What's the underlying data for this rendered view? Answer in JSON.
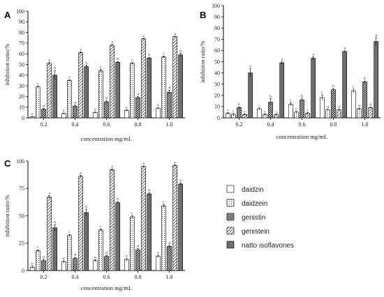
{
  "colors": {
    "axis": "#000000",
    "bar_stroke": "#000000",
    "solid_fill": "#6d6d6d",
    "white": "#ffffff"
  },
  "legend": {
    "items": [
      {
        "name": "daidzin",
        "pattern": "white"
      },
      {
        "name": "daidzein",
        "pattern": "dots"
      },
      {
        "name": "genistin",
        "pattern": "checker"
      },
      {
        "name": "genistein",
        "pattern": "diagonal"
      },
      {
        "name": "natto isoflavones",
        "pattern": "solid"
      }
    ]
  },
  "chart_data": [
    {
      "panel": "A",
      "type": "bar",
      "categories": [
        "0.2",
        "0.4",
        "0.6",
        "0.8",
        "1.0"
      ],
      "xlabel": "concentration mg/mL",
      "ylabel": "inhibition ratio/%",
      "ylim": [
        0,
        100
      ],
      "yticks": [
        0,
        10,
        20,
        30,
        40,
        50,
        60,
        70,
        80,
        90,
        100
      ],
      "series": [
        {
          "name": "daidzin",
          "values": [
            1,
            4,
            5,
            7,
            9
          ],
          "errors": [
            0.3,
            0.5,
            0.5,
            0.6,
            0.8
          ],
          "letters": [
            "e",
            "e",
            "e",
            "e",
            "e"
          ]
        },
        {
          "name": "daidzein",
          "values": [
            29,
            35,
            44,
            51,
            57
          ],
          "errors": [
            0.8,
            0.8,
            1.5,
            0.8,
            0.8
          ],
          "letters": [
            "c",
            "c",
            "c",
            "c",
            "c"
          ]
        },
        {
          "name": "genistin",
          "values": [
            8,
            11,
            15,
            19,
            24
          ],
          "errors": [
            0.8,
            0.8,
            1,
            1,
            2
          ],
          "letters": [
            "d",
            "d",
            "d",
            "d",
            "d"
          ]
        },
        {
          "name": "genistein",
          "values": [
            51,
            61,
            68,
            74,
            76
          ],
          "errors": [
            1,
            0.8,
            0.8,
            0.5,
            0.5
          ],
          "letters": [
            "a",
            "a",
            "a",
            "a",
            "a"
          ]
        },
        {
          "name": "natto isoflavones",
          "values": [
            40,
            48,
            52,
            56,
            59
          ],
          "errors": [
            4,
            1.5,
            0.8,
            0.8,
            1.5
          ],
          "letters": [
            "b",
            "b",
            "b",
            "b",
            "b"
          ]
        }
      ]
    },
    {
      "panel": "B",
      "type": "bar",
      "categories": [
        "0.2",
        "0.4",
        "0.6",
        "0.8",
        "1.0"
      ],
      "xlabel": "concentration mg/mL",
      "ylabel": "inhibition ratio/%",
      "ylim": [
        0,
        100
      ],
      "yticks": [
        0,
        10,
        20,
        30,
        40,
        50,
        60,
        70,
        80,
        90,
        100
      ],
      "series": [
        {
          "name": "daidzin",
          "values": [
            4,
            8,
            12,
            18,
            24
          ],
          "errors": [
            0.8,
            0.8,
            1.5,
            2.5,
            1.5
          ],
          "letters": [
            "c",
            "c",
            "c",
            "c",
            "c"
          ]
        },
        {
          "name": "daidzein",
          "values": [
            3,
            3,
            5,
            7,
            8
          ],
          "errors": [
            0.8,
            0.5,
            0.8,
            0.5,
            0.5
          ],
          "letters": [
            "c",
            "c",
            "c",
            "d",
            "d"
          ]
        },
        {
          "name": "genistin",
          "values": [
            9,
            14,
            16,
            25,
            32
          ],
          "errors": [
            0.8,
            3,
            1.5,
            1,
            0.8
          ],
          "letters": [
            "b",
            "b",
            "b",
            "b",
            "b"
          ]
        },
        {
          "name": "genistein",
          "values": [
            3,
            3,
            4,
            7,
            9
          ],
          "errors": [
            0.5,
            0.5,
            0.8,
            0.5,
            0.5
          ],
          "letters": [
            "c",
            "c",
            "c",
            "d",
            "d"
          ]
        },
        {
          "name": "natto isoflavones",
          "values": [
            40,
            49,
            53,
            59,
            68
          ],
          "errors": [
            4,
            1,
            1.5,
            0.8,
            3.5
          ],
          "letters": [
            "a",
            "a",
            "a",
            "a",
            "a"
          ]
        }
      ]
    },
    {
      "panel": "C",
      "type": "bar",
      "categories": [
        "0.2",
        "0.4",
        "0.6",
        "0.8",
        "1.0"
      ],
      "xlabel": "concentration mg/mL",
      "ylabel": "inhibition ratio/%",
      "ylim": [
        0,
        100
      ],
      "yticks": [
        0,
        25,
        50,
        75,
        100
      ],
      "series": [
        {
          "name": "daidzin",
          "values": [
            3,
            8,
            9,
            10,
            13
          ],
          "errors": [
            1,
            1,
            1,
            1,
            1
          ],
          "letters": [
            "e",
            "e",
            "e",
            "e",
            "e"
          ]
        },
        {
          "name": "daidzein",
          "values": [
            18,
            32,
            37,
            49,
            59
          ],
          "errors": [
            1,
            1,
            1,
            1,
            1.5
          ],
          "letters": [
            "c",
            "c",
            "c",
            "c",
            "c"
          ]
        },
        {
          "name": "genistin",
          "values": [
            9,
            11,
            13,
            19,
            22
          ],
          "errors": [
            1,
            1,
            1,
            1,
            1
          ],
          "letters": [
            "d",
            "d",
            "d",
            "d",
            "d"
          ]
        },
        {
          "name": "genistein",
          "values": [
            67,
            86,
            92,
            95,
            96
          ],
          "errors": [
            1.5,
            1,
            1,
            0.5,
            0.5
          ],
          "letters": [
            "a",
            "a",
            "a",
            "a",
            "a"
          ]
        },
        {
          "name": "natto isoflavones",
          "values": [
            39,
            53,
            62,
            70,
            79
          ],
          "errors": [
            3,
            3,
            1,
            1,
            1
          ],
          "letters": [
            "b",
            "b",
            "b",
            "b",
            "b"
          ]
        }
      ]
    }
  ]
}
